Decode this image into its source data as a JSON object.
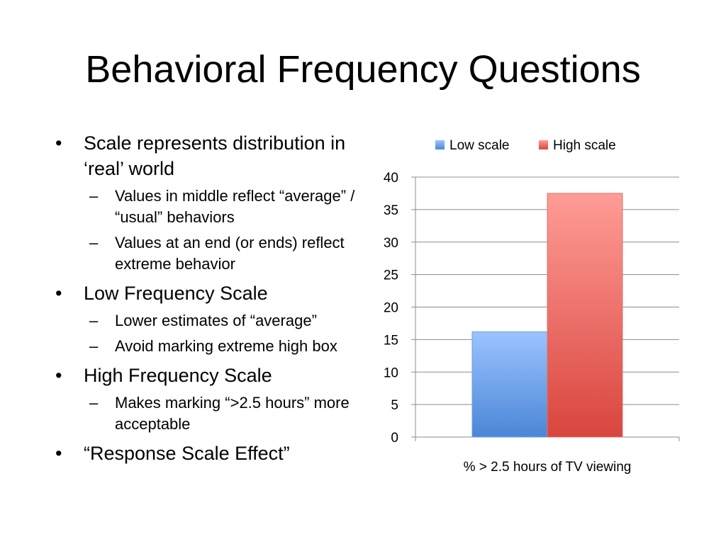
{
  "slide": {
    "title": "Behavioral Frequency Questions",
    "bullets": [
      {
        "text": "Scale represents distribution in ‘real’ world",
        "sub": [
          "Values in middle reflect “average” / “usual” behaviors",
          "Values at an end (or ends) reflect extreme behavior"
        ]
      },
      {
        "text": "Low Frequency Scale",
        "sub": [
          "Lower estimates of “average”",
          "Avoid marking extreme high box"
        ]
      },
      {
        "text": "High Frequency Scale",
        "sub": [
          "Makes marking “>2.5 hours” more acceptable"
        ]
      },
      {
        "text": "“Response Scale Effect”",
        "sub": []
      }
    ]
  },
  "chart_data": {
    "type": "bar",
    "categories": [
      "% > 2.5 hours of TV viewing"
    ],
    "series": [
      {
        "name": "Low scale",
        "values": [
          16.2
        ],
        "color": "#4a86d6"
      },
      {
        "name": "High scale",
        "values": [
          37.5
        ],
        "color": "#d9453e"
      }
    ],
    "xlabel": "% > 2.5 hours of TV viewing",
    "ylabel": "",
    "ylim": [
      0,
      40
    ],
    "yticks": [
      "0",
      "5",
      "10",
      "15",
      "20",
      "25",
      "30",
      "35",
      "40"
    ],
    "grid": true,
    "legend": "top"
  }
}
